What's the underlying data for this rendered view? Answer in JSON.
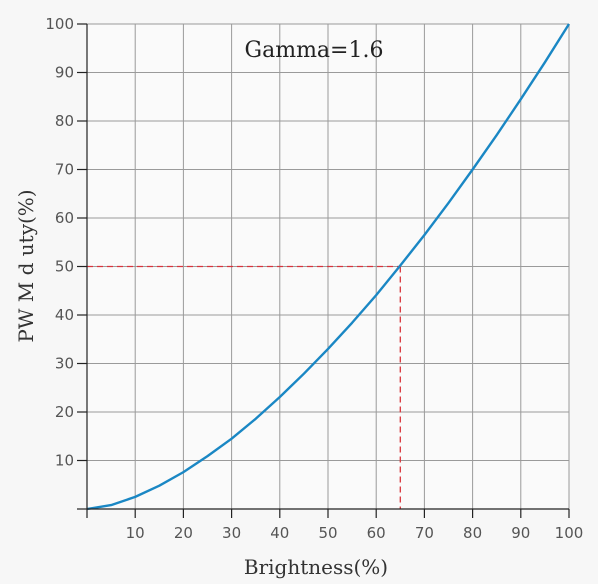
{
  "chart_data": {
    "type": "line",
    "title": "Gamma=1.6",
    "xlabel": "Brightness(%)",
    "ylabel": "PW M d uty(%)",
    "xlim": [
      0,
      100
    ],
    "ylim": [
      0,
      100
    ],
    "x_ticks": [
      "10",
      "20",
      "30",
      "40",
      "50",
      "60",
      "70",
      "80",
      "90",
      "100"
    ],
    "y_ticks": [
      "10",
      "20",
      "30",
      "40",
      "50",
      "60",
      "70",
      "80",
      "90",
      "100"
    ],
    "grid": true,
    "series": [
      {
        "color": "#1a87c4",
        "x": [
          0,
          5,
          10,
          15,
          20,
          25,
          30,
          35,
          40,
          45,
          50,
          55,
          60,
          65,
          70,
          75,
          80,
          85,
          90,
          95,
          100
        ],
        "y": [
          0,
          0.8,
          2.5,
          4.8,
          7.6,
          10.9,
          14.5,
          18.6,
          23.1,
          27.9,
          33.0,
          38.4,
          44.1,
          50.2,
          56.5,
          63.1,
          70.0,
          77.1,
          84.5,
          92.1,
          100
        ]
      }
    ],
    "guide_point": {
      "x": 65,
      "y": 50,
      "color": "#d9333b"
    }
  }
}
